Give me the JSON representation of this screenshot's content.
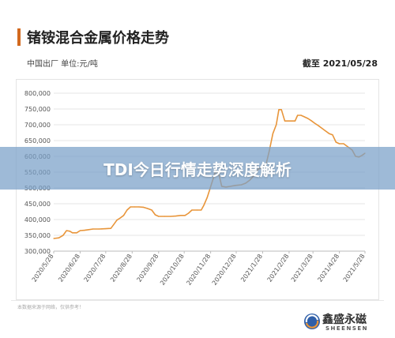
{
  "header": {
    "title": "锗铵混合金属价格走势",
    "subtitle_left": "中国出厂  单位:元/吨",
    "subtitle_right": "截至 2021/05/28"
  },
  "footer": {
    "source_note": "本数据来源于网络，仅供参考！",
    "brand_cn": "鑫盛永磁",
    "brand_en": "SHEENSEN"
  },
  "overlay": {
    "text": "TDI今日行情走势深度解析"
  },
  "colors": {
    "line": "#e8953a",
    "grid": "#e6e6e6",
    "accent": "#d2691e",
    "overlay": "#78a0c8"
  },
  "chart_data": {
    "type": "line",
    "title": "锗铵混合金属价格走势",
    "xlabel": "",
    "ylabel": "",
    "ylim": [
      300000,
      800000
    ],
    "yticks": [
      300000,
      350000,
      400000,
      450000,
      500000,
      550000,
      600000,
      650000,
      700000,
      750000,
      800000
    ],
    "ytick_labels": [
      "300,000",
      "350,000",
      "400,000",
      "450,000",
      "500,000",
      "550,000",
      "600,000",
      "650,000",
      "700,000",
      "750,000",
      "800,000"
    ],
    "xlim": [
      "2020-05-28",
      "2021-05-28"
    ],
    "xticks": [
      "2020/5/28",
      "2020/6/28",
      "2020/7/28",
      "2020/8/28",
      "2020/9/28",
      "2020/10/28",
      "2020/11/28",
      "2020/12/28",
      "2021/1/28",
      "2021/2/28",
      "2021/3/28",
      "2021/4/28",
      "2021/5/28"
    ],
    "grid": true,
    "series": [
      {
        "points": [
          [
            "2020-05-28",
            340000
          ],
          [
            "2020-06-03",
            342000
          ],
          [
            "2020-06-08",
            350000
          ],
          [
            "2020-06-12",
            365000
          ],
          [
            "2020-06-16",
            363000
          ],
          [
            "2020-06-19",
            358000
          ],
          [
            "2020-06-24",
            358000
          ],
          [
            "2020-06-28",
            365000
          ],
          [
            "2020-07-03",
            366000
          ],
          [
            "2020-07-08",
            368000
          ],
          [
            "2020-07-13",
            370000
          ],
          [
            "2020-07-20",
            370000
          ],
          [
            "2020-07-28",
            371000
          ],
          [
            "2020-08-03",
            372000
          ],
          [
            "2020-08-06",
            383000
          ],
          [
            "2020-08-10",
            398000
          ],
          [
            "2020-08-14",
            405000
          ],
          [
            "2020-08-18",
            413000
          ],
          [
            "2020-08-22",
            430000
          ],
          [
            "2020-08-26",
            440000
          ],
          [
            "2020-08-31",
            440000
          ],
          [
            "2020-09-05",
            440000
          ],
          [
            "2020-09-10",
            439000
          ],
          [
            "2020-09-15",
            435000
          ],
          [
            "2020-09-20",
            430000
          ],
          [
            "2020-09-24",
            415000
          ],
          [
            "2020-09-28",
            410000
          ],
          [
            "2020-10-05",
            410000
          ],
          [
            "2020-10-12",
            410000
          ],
          [
            "2020-10-18",
            411000
          ],
          [
            "2020-10-24",
            413000
          ],
          [
            "2020-10-29",
            413000
          ],
          [
            "2020-11-02",
            420000
          ],
          [
            "2020-11-06",
            430000
          ],
          [
            "2020-11-12",
            430000
          ],
          [
            "2020-11-17",
            430000
          ],
          [
            "2020-11-20",
            445000
          ],
          [
            "2020-11-24",
            470000
          ],
          [
            "2020-11-27",
            495000
          ],
          [
            "2020-12-01",
            530000
          ],
          [
            "2020-12-04",
            555000
          ],
          [
            "2020-12-08",
            540000
          ],
          [
            "2020-12-11",
            505000
          ],
          [
            "2020-12-16",
            503000
          ],
          [
            "2020-12-21",
            505000
          ],
          [
            "2020-12-27",
            508000
          ],
          [
            "2021-01-03",
            510000
          ],
          [
            "2021-01-08",
            515000
          ],
          [
            "2021-01-13",
            525000
          ],
          [
            "2021-01-18",
            540000
          ],
          [
            "2021-01-23",
            560000
          ],
          [
            "2021-01-28",
            565000
          ],
          [
            "2021-02-01",
            575000
          ],
          [
            "2021-02-05",
            620000
          ],
          [
            "2021-02-09",
            672000
          ],
          [
            "2021-02-13",
            700000
          ],
          [
            "2021-02-16",
            748000
          ],
          [
            "2021-02-19",
            748000
          ],
          [
            "2021-02-23",
            712000
          ],
          [
            "2021-02-27",
            712000
          ],
          [
            "2021-03-03",
            712000
          ],
          [
            "2021-03-07",
            712000
          ],
          [
            "2021-03-10",
            730000
          ],
          [
            "2021-03-14",
            730000
          ],
          [
            "2021-03-18",
            725000
          ],
          [
            "2021-03-22",
            720000
          ],
          [
            "2021-03-26",
            713000
          ],
          [
            "2021-03-30",
            705000
          ],
          [
            "2021-04-03",
            698000
          ],
          [
            "2021-04-07",
            690000
          ],
          [
            "2021-04-12",
            680000
          ],
          [
            "2021-04-16",
            672000
          ],
          [
            "2021-04-20",
            668000
          ],
          [
            "2021-04-24",
            645000
          ],
          [
            "2021-04-28",
            640000
          ],
          [
            "2021-05-03",
            640000
          ],
          [
            "2021-05-08",
            630000
          ],
          [
            "2021-05-13",
            620000
          ],
          [
            "2021-05-17",
            600000
          ],
          [
            "2021-05-21",
            598000
          ],
          [
            "2021-05-25",
            604000
          ],
          [
            "2021-05-28",
            610000
          ]
        ]
      }
    ]
  }
}
